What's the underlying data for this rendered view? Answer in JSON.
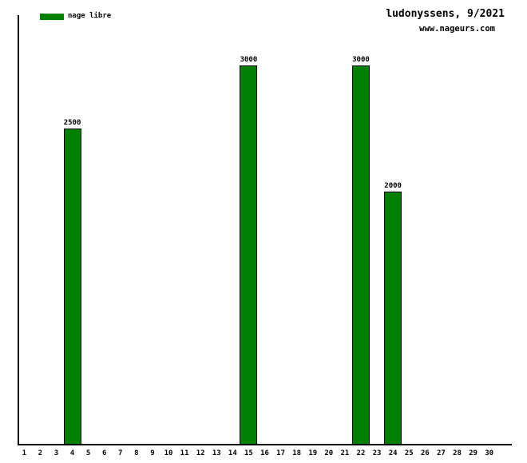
{
  "chart_data": {
    "type": "bar",
    "title": "ludonyssens, 9/2021",
    "subtitle": "www.nageurs.com",
    "legend": [
      {
        "label": "nage libre",
        "color": "#008000"
      }
    ],
    "legend_position": "top-left",
    "x_tick_labels": [
      "1",
      "2",
      "3",
      "4",
      "5",
      "6",
      "7",
      "8",
      "9",
      "10",
      "11",
      "12",
      "13",
      "14",
      "15",
      "16",
      "17",
      "18",
      "19",
      "20",
      "21",
      "22",
      "23",
      "24",
      "25",
      "26",
      "27",
      "28",
      "29",
      "30"
    ],
    "series": [
      {
        "name": "nage libre",
        "points": [
          {
            "x": 4,
            "y": 2500
          },
          {
            "x": 15,
            "y": 3000
          },
          {
            "x": 22,
            "y": 3000
          },
          {
            "x": 24,
            "y": 2000
          }
        ]
      }
    ],
    "value_labels_shown": true,
    "xlabel": "",
    "ylabel": "",
    "ylim": [
      0,
      3400
    ],
    "grid": false,
    "bar_color": "#008000",
    "bar_border_color": "#000000",
    "axis_color": "#000000",
    "background_color": "#ffffff"
  }
}
